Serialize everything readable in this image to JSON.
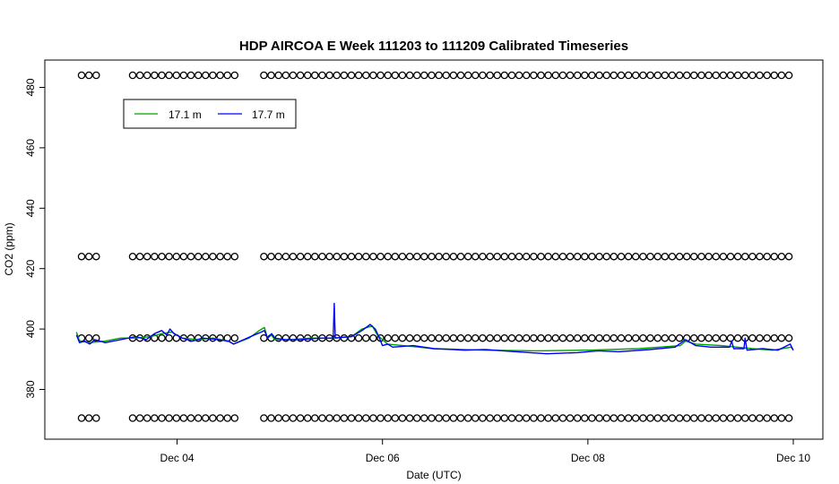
{
  "chart_data": {
    "type": "line",
    "title": "HDP AIRCOA E  Week 111203 to 111209  Calibrated Timeseries",
    "xlabel": "Date (UTC)",
    "ylabel": "CO2 (ppm)",
    "xlim": [
      3.0,
      10.0
    ],
    "ylim": [
      367,
      485
    ],
    "xticks": [
      {
        "x": 4,
        "label": "Dec 04"
      },
      {
        "x": 6,
        "label": "Dec 06"
      },
      {
        "x": 8,
        "label": "Dec 08"
      },
      {
        "x": 10,
        "label": "Dec 10"
      }
    ],
    "yticks": [
      {
        "y": 380,
        "label": "380"
      },
      {
        "y": 400,
        "label": "400"
      },
      {
        "y": 420,
        "label": "420"
      },
      {
        "y": 440,
        "label": "440"
      },
      {
        "y": 460,
        "label": "460"
      },
      {
        "y": 480,
        "label": "480"
      }
    ],
    "grid": false,
    "legend_position": "top-left",
    "series": [
      {
        "name": "17.1 m",
        "color": "#00a000",
        "points": [
          [
            3.02,
            399
          ],
          [
            3.05,
            396
          ],
          [
            3.15,
            395.5
          ],
          [
            3.3,
            396
          ],
          [
            3.45,
            397
          ],
          [
            3.6,
            397
          ],
          [
            3.75,
            397.5
          ],
          [
            3.85,
            398.5
          ],
          [
            3.95,
            399
          ],
          [
            4.05,
            397
          ],
          [
            4.2,
            396.5
          ],
          [
            4.35,
            397
          ],
          [
            4.5,
            396
          ],
          [
            4.55,
            395
          ],
          [
            4.7,
            397
          ],
          [
            4.8,
            399.5
          ],
          [
            4.85,
            400.5
          ],
          [
            4.88,
            397
          ],
          [
            4.92,
            398
          ],
          [
            4.95,
            396.5
          ],
          [
            5.1,
            396.5
          ],
          [
            5.3,
            397
          ],
          [
            5.5,
            397
          ],
          [
            5.7,
            397.5
          ],
          [
            5.8,
            400
          ],
          [
            5.9,
            401
          ],
          [
            5.95,
            398
          ],
          [
            6.05,
            395
          ],
          [
            6.2,
            394.5
          ],
          [
            6.5,
            393.5
          ],
          [
            7.0,
            393
          ],
          [
            7.5,
            392.8
          ],
          [
            8.0,
            393
          ],
          [
            8.5,
            393.5
          ],
          [
            8.9,
            394.5
          ],
          [
            8.95,
            396
          ],
          [
            9.05,
            395
          ],
          [
            9.3,
            394.5
          ],
          [
            9.6,
            393.5
          ],
          [
            9.8,
            393
          ],
          [
            9.98,
            394
          ],
          [
            10.0,
            393
          ]
        ]
      },
      {
        "name": "17.7 m",
        "color": "#0000ff",
        "points": [
          [
            3.02,
            398
          ],
          [
            3.05,
            395.5
          ],
          [
            3.1,
            396
          ],
          [
            3.15,
            395
          ],
          [
            3.2,
            396.5
          ],
          [
            3.3,
            395.5
          ],
          [
            3.45,
            396.5
          ],
          [
            3.6,
            397.5
          ],
          [
            3.7,
            396.5
          ],
          [
            3.78,
            398.5
          ],
          [
            3.85,
            399.5
          ],
          [
            3.9,
            398
          ],
          [
            3.93,
            400
          ],
          [
            3.97,
            398.5
          ],
          [
            4.05,
            397
          ],
          [
            4.15,
            396
          ],
          [
            4.25,
            397
          ],
          [
            4.4,
            396.5
          ],
          [
            4.5,
            396
          ],
          [
            4.55,
            395
          ],
          [
            4.65,
            396.5
          ],
          [
            4.75,
            398
          ],
          [
            4.82,
            399
          ],
          [
            4.85,
            399.5
          ],
          [
            4.88,
            397
          ],
          [
            4.92,
            398.5
          ],
          [
            4.95,
            397
          ],
          [
            5.05,
            396.5
          ],
          [
            5.2,
            396.5
          ],
          [
            5.4,
            397
          ],
          [
            5.52,
            397
          ],
          [
            5.53,
            408.5
          ],
          [
            5.54,
            397
          ],
          [
            5.7,
            397.5
          ],
          [
            5.8,
            399.5
          ],
          [
            5.88,
            401.5
          ],
          [
            5.93,
            400
          ],
          [
            5.97,
            397
          ],
          [
            6.0,
            394.5
          ],
          [
            6.05,
            395
          ],
          [
            6.1,
            394
          ],
          [
            6.3,
            394.5
          ],
          [
            6.5,
            393.5
          ],
          [
            6.8,
            393
          ],
          [
            7.0,
            393.2
          ],
          [
            7.3,
            392.5
          ],
          [
            7.6,
            391.8
          ],
          [
            7.9,
            392.2
          ],
          [
            8.1,
            392.8
          ],
          [
            8.3,
            392.5
          ],
          [
            8.6,
            393.2
          ],
          [
            8.85,
            394
          ],
          [
            8.95,
            396.5
          ],
          [
            9.05,
            394.5
          ],
          [
            9.2,
            394
          ],
          [
            9.38,
            394
          ],
          [
            9.4,
            396
          ],
          [
            9.42,
            393.5
          ],
          [
            9.52,
            393.5
          ],
          [
            9.53,
            397
          ],
          [
            9.55,
            393
          ],
          [
            9.7,
            393.5
          ],
          [
            9.85,
            393
          ],
          [
            9.97,
            395
          ],
          [
            10.0,
            393
          ]
        ]
      }
    ],
    "markers": {
      "symbol": "open circle",
      "levels": [
        484,
        424,
        397,
        370.5
      ],
      "x_start": 3.07,
      "x_end": 10.0,
      "x_step": 0.071,
      "gaps": [
        [
          3.22,
          3.52
        ],
        [
          4.57,
          4.82
        ]
      ]
    }
  }
}
